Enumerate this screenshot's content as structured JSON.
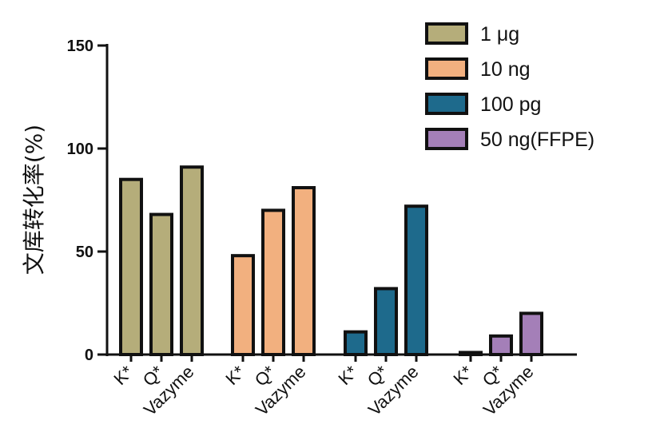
{
  "chart_data": {
    "type": "bar",
    "title": "",
    "xlabel": "",
    "ylabel": "文库转化率(%)",
    "ylim": [
      0,
      150
    ],
    "yticks": [
      0,
      50,
      100,
      150
    ],
    "categories": [
      "K*",
      "Q*",
      "Vazyme"
    ],
    "legend_position": "top-right",
    "series": [
      {
        "name": "1 μg",
        "color": "#b5ad7a",
        "values": [
          85,
          68,
          91
        ]
      },
      {
        "name": "10 ng",
        "color": "#f2b07f",
        "values": [
          48,
          70,
          81
        ]
      },
      {
        "name": "100 pg",
        "color": "#1e6a8c",
        "values": [
          11,
          32,
          72
        ]
      },
      {
        "name": "50 ng(FFPE)",
        "color": "#a47fb8",
        "values": [
          1,
          9,
          20
        ]
      }
    ]
  }
}
